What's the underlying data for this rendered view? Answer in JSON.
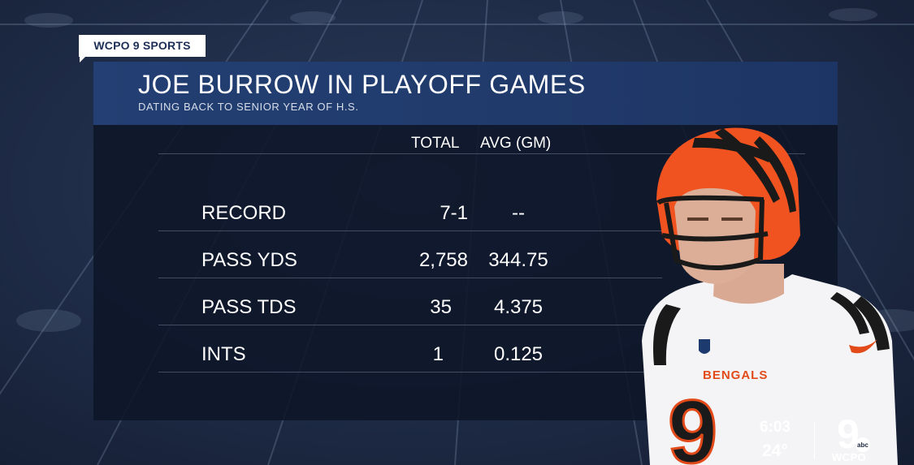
{
  "badge": {
    "label": "WCPO 9 SPORTS"
  },
  "header": {
    "title": "JOE BURROW IN PLAYOFF GAMES",
    "subtitle": "DATING BACK TO SENIOR YEAR OF H.S."
  },
  "table": {
    "columns": [
      "TOTAL",
      "AVG (GM)"
    ],
    "rows": [
      {
        "label": "RECORD",
        "total": "7-1",
        "avg": "--"
      },
      {
        "label": "PASS YDS",
        "total": "2,758",
        "avg": "344.75"
      },
      {
        "label": "PASS TDS",
        "total": "35",
        "avg": "4.375"
      },
      {
        "label": "INTS",
        "total": "1",
        "avg": "0.125"
      }
    ]
  },
  "player": {
    "jersey_text": "BENGALS",
    "number": "9"
  },
  "bug": {
    "time": "6:03",
    "temperature": "24°",
    "logo_number": "9",
    "logo_network": "abc",
    "station": "WCPO"
  },
  "colors": {
    "header_blue": "#233f73",
    "panel_dark": "#0e1628",
    "bengals_orange": "#f0531f"
  }
}
